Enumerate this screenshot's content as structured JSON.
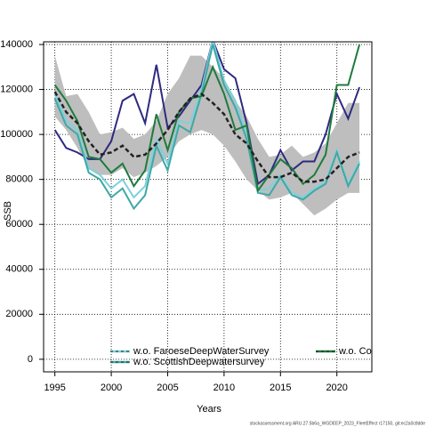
{
  "chart_data": {
    "type": "line",
    "x_label": "Years",
    "y_label": "SSB",
    "footer": "stockassessment.org ARU.27.5b6a_WGDEEP_2023_FleetEffect r17150, git:ec2a0c8dde",
    "x": [
      1995,
      1996,
      1997,
      1998,
      1999,
      2000,
      2001,
      2002,
      2003,
      2004,
      2005,
      2006,
      2007,
      2008,
      2009,
      2010,
      2011,
      2012,
      2013,
      2014,
      2015,
      2016,
      2017,
      2018,
      2019,
      2020,
      2021,
      2022
    ],
    "xlim": [
      1994,
      2023.1
    ],
    "xticks": [
      1995,
      2000,
      2005,
      2010,
      2015,
      2020
    ],
    "ylim": [
      -5600,
      141200
    ],
    "yticks": [
      0,
      20000,
      40000,
      60000,
      80000,
      100000,
      120000,
      140000
    ],
    "grid": true,
    "band": {
      "color": "#bebebe",
      "upper": [
        135000,
        117000,
        118000,
        110000,
        100000,
        101000,
        103000,
        98000,
        100000,
        106000,
        118000,
        125000,
        135000,
        135000,
        130000,
        125000,
        115000,
        108000,
        98000,
        90000,
        91000,
        95000,
        90000,
        92000,
        96000,
        105000,
        114000,
        114000
      ],
      "lower": [
        108000,
        102000,
        94000,
        85000,
        82000,
        82000,
        85000,
        81000,
        83000,
        86000,
        90000,
        97000,
        100000,
        102000,
        100000,
        95000,
        88000,
        80000,
        75000,
        71000,
        72000,
        74000,
        69000,
        64000,
        67000,
        71000,
        74000,
        74000
      ]
    },
    "baseline": {
      "color": "#222222",
      "values": [
        119000,
        110000,
        105000,
        97000,
        91000,
        92000,
        95000,
        90000,
        91000,
        96000,
        102000,
        110000,
        116000,
        118000,
        114000,
        109000,
        100000,
        96000,
        88000,
        81000,
        81000,
        83000,
        79000,
        79000,
        80000,
        85000,
        90000,
        92000
      ]
    },
    "series": [
      {
        "color": "#2e2a80",
        "values": [
          102000,
          94000,
          92000,
          89000,
          89000,
          97000,
          115000,
          118000,
          105000,
          131000,
          103000,
          108000,
          115000,
          122000,
          142000,
          129000,
          125000,
          105000,
          78000,
          82000,
          93000,
          84000,
          88000,
          88000,
          100000,
          118000,
          107000,
          121000
        ]
      },
      {
        "name": "w.o. FaroeseDeepWaterSurvey",
        "color": "#7fd0dc",
        "values": [
          118000,
          106000,
          102000,
          85000,
          82000,
          76000,
          80000,
          72000,
          77000,
          98000,
          87000,
          106000,
          105000,
          120000,
          142000,
          124000,
          115000,
          100000,
          75000,
          76000,
          82000,
          74000,
          72000,
          76000,
          79000,
          93000,
          78000,
          88000
        ]
      },
      {
        "name": "w.o. ScottishDeepwatersurvey",
        "color": "#40a8a4",
        "values": [
          116000,
          104000,
          100000,
          83000,
          80000,
          72000,
          76000,
          67000,
          73000,
          95000,
          84000,
          104000,
          101000,
          118000,
          140000,
          122000,
          112000,
          98000,
          74000,
          73000,
          81000,
          73000,
          71000,
          75000,
          78000,
          92000,
          77000,
          87000
        ]
      },
      {
        "name": "w.o. Cor",
        "color": "#1e7b3e",
        "values": [
          122000,
          115000,
          106000,
          90000,
          89000,
          83000,
          87000,
          77000,
          84000,
          109000,
          93000,
          110000,
          116000,
          117000,
          130000,
          118000,
          102000,
          104000,
          75000,
          82000,
          89000,
          85000,
          78000,
          82000,
          91000,
          122000,
          122000,
          140000
        ]
      }
    ]
  }
}
